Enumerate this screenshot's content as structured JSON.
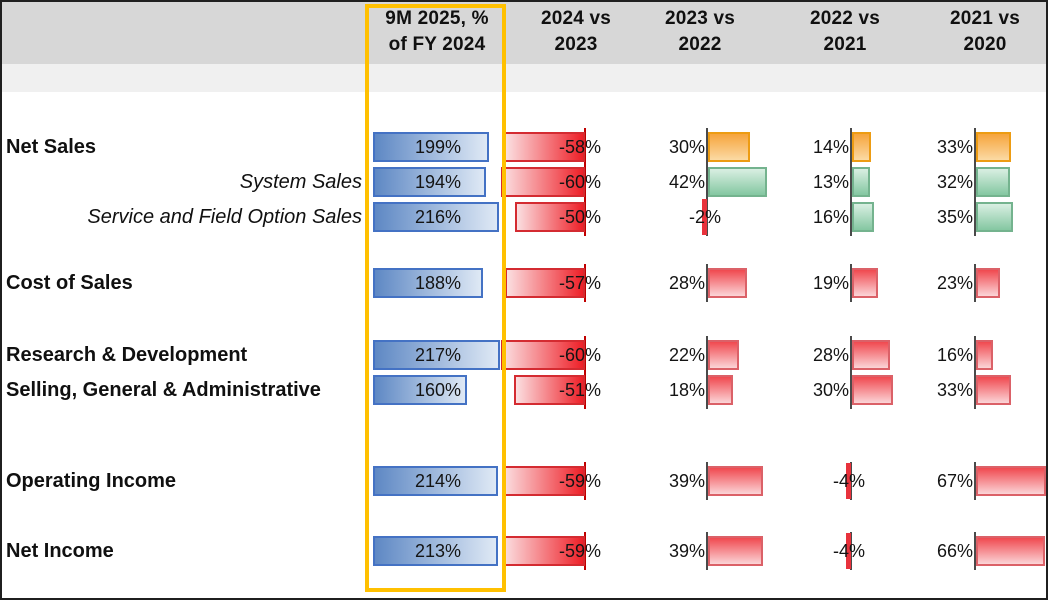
{
  "header": {
    "columns": [
      {
        "line1": "9M 2025, %",
        "line2": "of FY 2024"
      },
      {
        "line1": "2024 vs",
        "line2": "2023"
      },
      {
        "line1": "2023 vs",
        "line2": "2022"
      },
      {
        "line1": "2022 vs",
        "line2": "2021"
      },
      {
        "line1": "2021 vs",
        "line2": "2020"
      }
    ]
  },
  "chart_data": {
    "type": "bar",
    "unit": "%",
    "title": "",
    "columns": [
      "9M 2025, % of FY 2024",
      "2024 vs 2023",
      "2023 vs 2022",
      "2022 vs 2021",
      "2021 vs 2020"
    ],
    "highlighted_column": "9M 2025, % of FY 2024",
    "highlight_border_color": "#FFC000",
    "palette": {
      "blue": "#4472C4",
      "red": "#EE2028",
      "orange": "#F6A43C",
      "green": "#84C7A1"
    },
    "rows": [
      {
        "label": "Net Sales",
        "style": "bold",
        "values": [
          199,
          -58,
          30,
          14,
          33
        ],
        "colors": [
          "blue",
          "red",
          "orange",
          "orange",
          "orange"
        ]
      },
      {
        "label": "System Sales",
        "style": "italic",
        "values": [
          194,
          -60,
          42,
          13,
          32
        ],
        "colors": [
          "blue",
          "red",
          "green",
          "green",
          "green"
        ]
      },
      {
        "label": "Service and Field Option Sales",
        "style": "italic",
        "values": [
          216,
          -50,
          -2,
          16,
          35
        ],
        "colors": [
          "blue",
          "red",
          "red",
          "green",
          "green"
        ]
      },
      {
        "label": "Cost of Sales",
        "style": "bold",
        "values": [
          188,
          -57,
          28,
          19,
          23
        ],
        "colors": [
          "blue",
          "red",
          "red",
          "red",
          "red"
        ]
      },
      {
        "label": "Research & Development",
        "style": "bold",
        "values": [
          217,
          -60,
          22,
          28,
          16
        ],
        "colors": [
          "blue",
          "red",
          "red",
          "red",
          "red"
        ]
      },
      {
        "label": "Selling, General & Administrative",
        "style": "bold",
        "values": [
          160,
          -51,
          18,
          30,
          33
        ],
        "colors": [
          "blue",
          "red",
          "red",
          "red",
          "red"
        ]
      },
      {
        "label": "Operating Income",
        "style": "bold",
        "values": [
          214,
          -59,
          39,
          -4,
          67
        ],
        "colors": [
          "blue",
          "red",
          "red",
          "red",
          "red"
        ]
      },
      {
        "label": "Net Income",
        "style": "bold",
        "values": [
          213,
          -59,
          39,
          -4,
          66
        ],
        "colors": [
          "blue",
          "red",
          "red",
          "red",
          "red"
        ]
      }
    ]
  }
}
